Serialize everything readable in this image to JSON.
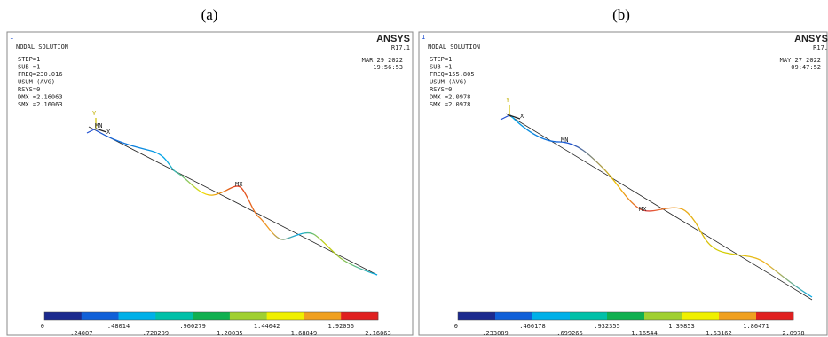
{
  "panels": [
    {
      "label": "(a)",
      "window_number": "1",
      "title": "NODAL SOLUTION",
      "info": [
        "STEP=1",
        "SUB =1",
        "FREQ=230.016",
        "USUM    (AVG)",
        "RSYS=0",
        "DMX =2.16063",
        "SMX =2.16063"
      ],
      "brand": "ANSYS",
      "version": "R17.1",
      "date": "MAR 29 2022",
      "time": "19:56:53",
      "markers": {
        "min": "MN",
        "max": "MX",
        "x": "X",
        "y": "Y"
      },
      "legend_upper": [
        "0",
        ".48014",
        ".960279",
        "1.44042",
        "1.92056"
      ],
      "legend_lower": [
        ".24007",
        ".720209",
        "1.20035",
        "1.68049",
        "2.16063"
      ]
    },
    {
      "label": "(b)",
      "window_number": "1",
      "title": "NODAL SOLUTION",
      "info": [
        "STEP=1",
        "SUB =1",
        "FREQ=155.805",
        "USUM    (AVG)",
        "RSYS=0",
        "DMX =2.0978",
        "SMX =2.0978"
      ],
      "brand": "ANSYS",
      "version": "R17.",
      "date": "MAY 27 2022",
      "time": "09:47:52",
      "markers": {
        "min": "MN",
        "max": "MX",
        "x": "X",
        "y": "Y"
      },
      "legend_upper": [
        "0",
        ".466178",
        ".932355",
        "1.39853",
        "1.86471"
      ],
      "legend_lower": [
        ".233089",
        ".699266",
        "1.16544",
        "1.63162",
        "2.0978"
      ]
    }
  ]
}
